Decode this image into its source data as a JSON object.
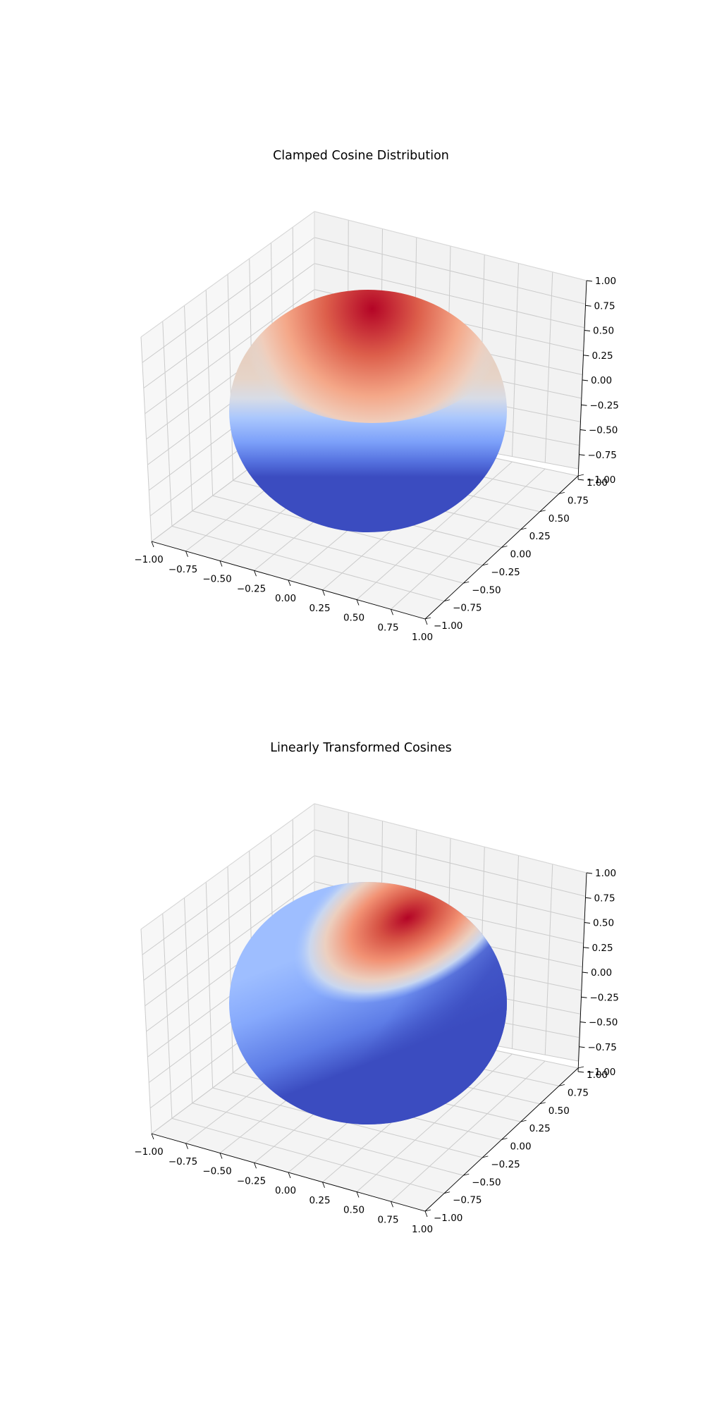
{
  "chart_data": [
    {
      "type": "surface3d",
      "title": "Clamped Cosine Distribution",
      "surface": "unit sphere colored by distribution value",
      "colormap": "coolwarm",
      "lobe_direction": [
        0,
        0,
        1
      ],
      "lobe_description": "clamped cosine around +z",
      "xlim": [
        -1.0,
        1.0
      ],
      "ylim": [
        -1.0,
        1.0
      ],
      "zlim": [
        -1.0,
        1.0
      ],
      "xticks": [
        "−1.00",
        "−0.75",
        "−0.50",
        "−0.25",
        "0.00",
        "0.25",
        "0.50",
        "0.75",
        "1.00"
      ],
      "yticks": [
        "−1.00",
        "−0.75",
        "−0.50",
        "−0.25",
        "0.00",
        "0.25",
        "0.50",
        "0.75",
        "1.00"
      ],
      "zticks": [
        "−1.00",
        "−0.75",
        "−0.50",
        "−0.25",
        "0.00",
        "0.25",
        "0.50",
        "0.75",
        "1.00"
      ],
      "grid": true
    },
    {
      "type": "surface3d",
      "title": "Linearly Transformed Cosines",
      "surface": "unit sphere colored by distribution value",
      "colormap": "coolwarm",
      "lobe_direction": [
        0.5,
        0.5,
        0.7
      ],
      "lobe_description": "transformed cosine lobe tilted toward upper back",
      "xlim": [
        -1.0,
        1.0
      ],
      "ylim": [
        -1.0,
        1.0
      ],
      "zlim": [
        -1.0,
        1.0
      ],
      "xticks": [
        "−1.00",
        "−0.75",
        "−0.50",
        "−0.25",
        "0.00",
        "0.25",
        "0.50",
        "0.75",
        "1.00"
      ],
      "yticks": [
        "−1.00",
        "−0.75",
        "−0.50",
        "−0.25",
        "0.00",
        "0.25",
        "0.50",
        "0.75",
        "1.00"
      ],
      "zticks": [
        "−1.00",
        "−0.75",
        "−0.50",
        "−0.25",
        "0.00",
        "0.25",
        "0.50",
        "0.75",
        "1.00"
      ],
      "grid": true
    }
  ],
  "colors": {
    "pane_left": "#f7f7f7",
    "pane_back": "#f2f2f2",
    "pane_floor": "#f4f4f4",
    "grid": "#cbcbcb",
    "axis_line": "#000000",
    "cold": "#3b4cc0",
    "neutral": "#dddddd",
    "hot": "#b40426"
  }
}
